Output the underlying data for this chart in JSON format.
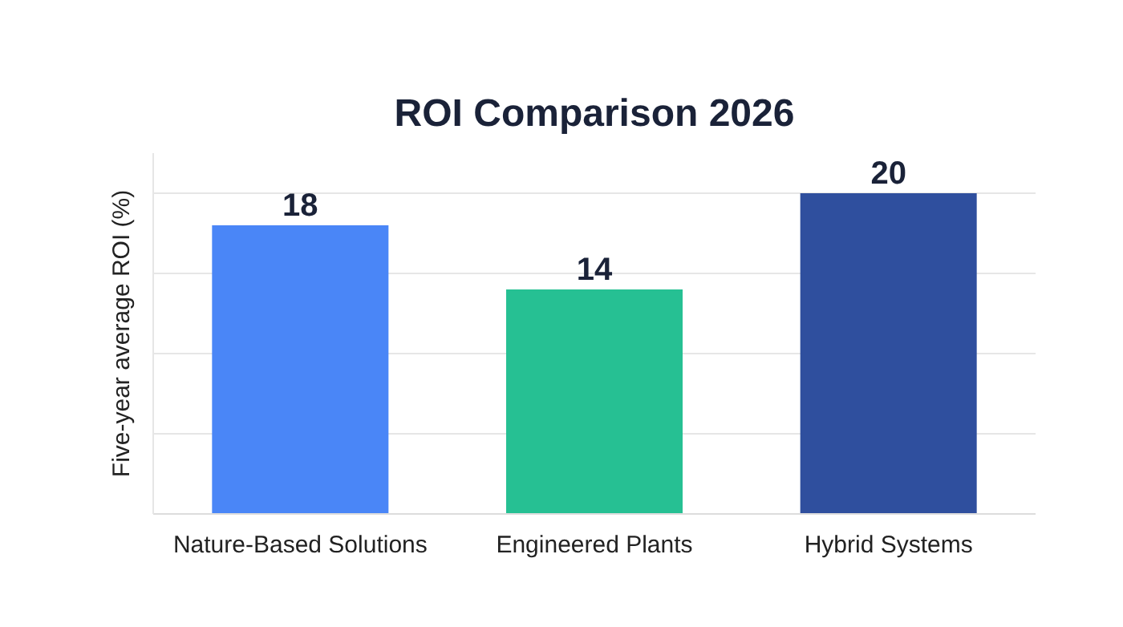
{
  "chart_data": {
    "type": "bar",
    "title": "ROI Comparison 2026",
    "ylabel": "Five-year average ROI (%)",
    "categories": [
      "Nature-Based Solutions",
      "Engineered Plants",
      "Hybrid Systems"
    ],
    "values": [
      18,
      14,
      20
    ],
    "colors": [
      "#4a86f7",
      "#26c093",
      "#2f4f9e"
    ],
    "ylim": [
      0,
      22.5
    ],
    "yticks": [
      {
        "value": 0,
        "label": null
      },
      {
        "value": 5,
        "label": null
      },
      {
        "value": 10,
        "label": null
      },
      {
        "value": 15,
        "label": null
      },
      {
        "value": 20,
        "label": null
      }
    ],
    "tick_labels": "x",
    "grid": "y",
    "data_labels": true
  }
}
